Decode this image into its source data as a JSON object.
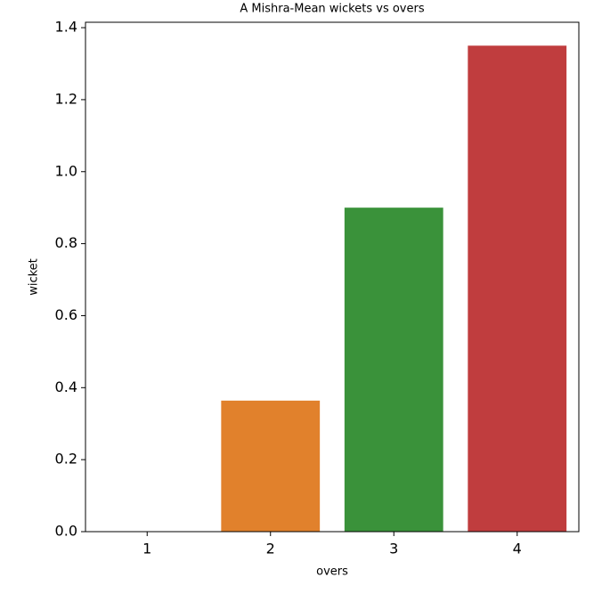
{
  "chart_data": {
    "type": "bar",
    "title": "A Mishra-Mean wickets vs overs",
    "x_label": "overs",
    "y_label": "wicket",
    "categories": [
      "1",
      "2",
      "3",
      "4"
    ],
    "values": [
      0,
      0.364,
      0.9,
      1.35
    ],
    "colors": [
      "#3274a1",
      "#e1812c",
      "#3a923a",
      "#c03d3e"
    ],
    "ylim": [
      0,
      1.415
    ],
    "yticks": [
      {
        "value": 0,
        "label": "0.0"
      },
      0.2,
      0.4,
      0.6,
      0.8,
      {
        "value": 1,
        "label": "1.0"
      },
      1.2,
      1.4
    ]
  }
}
